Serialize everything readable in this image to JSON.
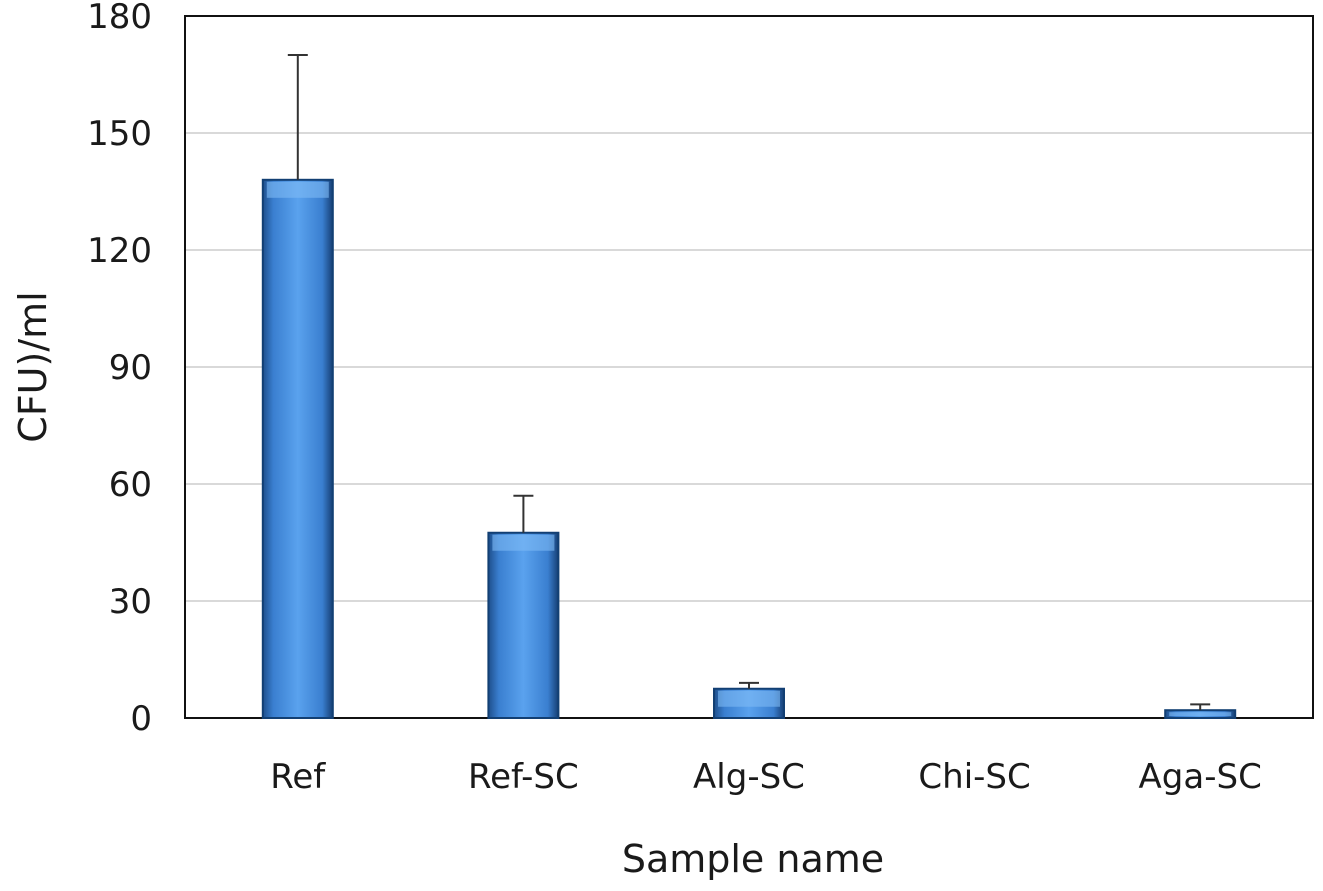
{
  "chart_data": {
    "type": "bar",
    "title": "",
    "xlabel": "Sample name",
    "ylabel": "CFU)/ml",
    "categories": [
      "Ref",
      "Ref-SC",
      "Alg-SC",
      "Chi-SC",
      "Aga-SC"
    ],
    "values": [
      138,
      47.5,
      7.5,
      0,
      2
    ],
    "error_plus": [
      32,
      9.5,
      1.5,
      0,
      1.5
    ],
    "ylim": [
      0,
      180
    ],
    "yticks": [
      "0",
      "30",
      "60",
      "90",
      "120",
      "150",
      "180"
    ],
    "ytick_values": [
      0,
      30,
      60,
      90,
      120,
      150,
      180
    ],
    "grid": true,
    "legend": "none",
    "bar_color": "#3e86d6",
    "bar_edge_color": "#123f73",
    "gridline_color": "#d9d9d9"
  }
}
